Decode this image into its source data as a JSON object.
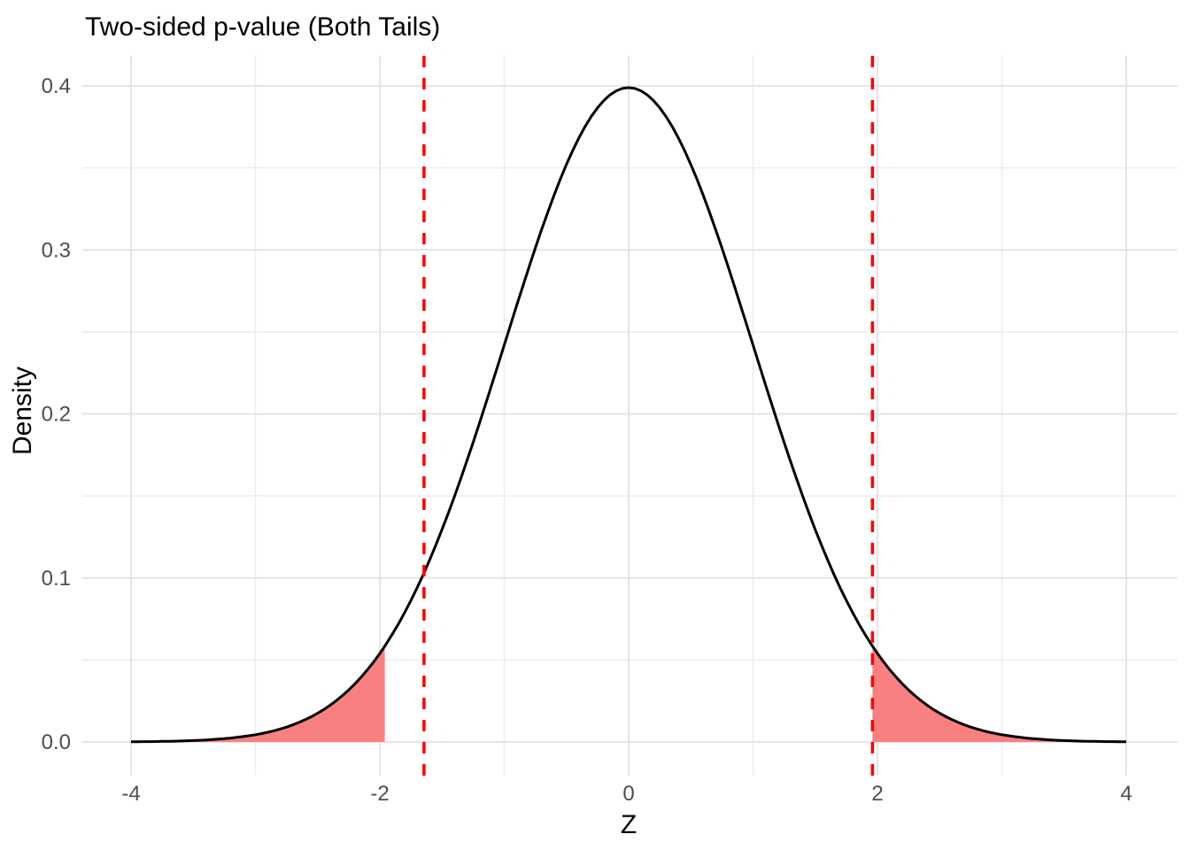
{
  "title": "Two-sided p-value (Both Tails)",
  "chart_data": {
    "type": "area",
    "title": "Two-sided p-value (Both Tails)",
    "xlabel": "Z",
    "ylabel": "Density",
    "xlim": [
      -4,
      4
    ],
    "ylim": [
      0,
      0.4
    ],
    "grid": "on",
    "legend": "none",
    "x_ticks": [
      -4,
      -2,
      0,
      2,
      4
    ],
    "x_tick_labels": [
      "-4",
      "-2",
      "0",
      "2",
      "4"
    ],
    "x_minor_ticks": [
      -3,
      -1,
      1,
      3
    ],
    "y_ticks": [
      0,
      0.1,
      0.2,
      0.3,
      0.4
    ],
    "y_tick_labels": [
      "0.0",
      "0.1",
      "0.2",
      "0.3",
      "0.4"
    ],
    "y_minor_ticks": [
      0.05,
      0.15,
      0.25,
      0.35
    ],
    "distribution": {
      "name": "standard-normal",
      "mean": 0,
      "sd": 1,
      "peak_density": 0.3989
    },
    "curve_points": {
      "z": [
        -4,
        -3.8,
        -3.6,
        -3.4,
        -3.2,
        -3,
        -2.8,
        -2.6,
        -2.4,
        -2.2,
        -2,
        -1.8,
        -1.6,
        -1.4,
        -1.2,
        -1,
        -0.8,
        -0.6,
        -0.4,
        -0.2,
        0,
        0.2,
        0.4,
        0.6,
        0.8,
        1,
        1.2,
        1.4,
        1.6,
        1.8,
        2,
        2.2,
        2.4,
        2.6,
        2.8,
        3,
        3.2,
        3.4,
        3.6,
        3.8,
        4
      ],
      "density": [
        0.0001,
        0.0003,
        0.0006,
        0.0012,
        0.0024,
        0.0044,
        0.0079,
        0.0136,
        0.0224,
        0.0355,
        0.054,
        0.079,
        0.1109,
        0.1497,
        0.1942,
        0.242,
        0.2897,
        0.3332,
        0.3683,
        0.391,
        0.3989,
        0.391,
        0.3683,
        0.3332,
        0.2897,
        0.242,
        0.1942,
        0.1497,
        0.1109,
        0.079,
        0.054,
        0.0355,
        0.0224,
        0.0136,
        0.0079,
        0.0044,
        0.0024,
        0.0012,
        0.0006,
        0.0003,
        0.0001
      ]
    },
    "shaded_tails": [
      {
        "from": -4,
        "to": -1.96
      },
      {
        "from": 1.96,
        "to": 4
      }
    ],
    "dashed_lines_z": [
      -1.645,
      1.96
    ],
    "colors": {
      "curve": "#000000",
      "tail_fill": "#F98080",
      "dashed_line": "#FF0000",
      "grid_major": "#E5E5E5",
      "grid_minor": "#ECECEC",
      "tick_label": "#4D4D4D",
      "text": "#000000",
      "background": "#FFFFFF"
    }
  }
}
